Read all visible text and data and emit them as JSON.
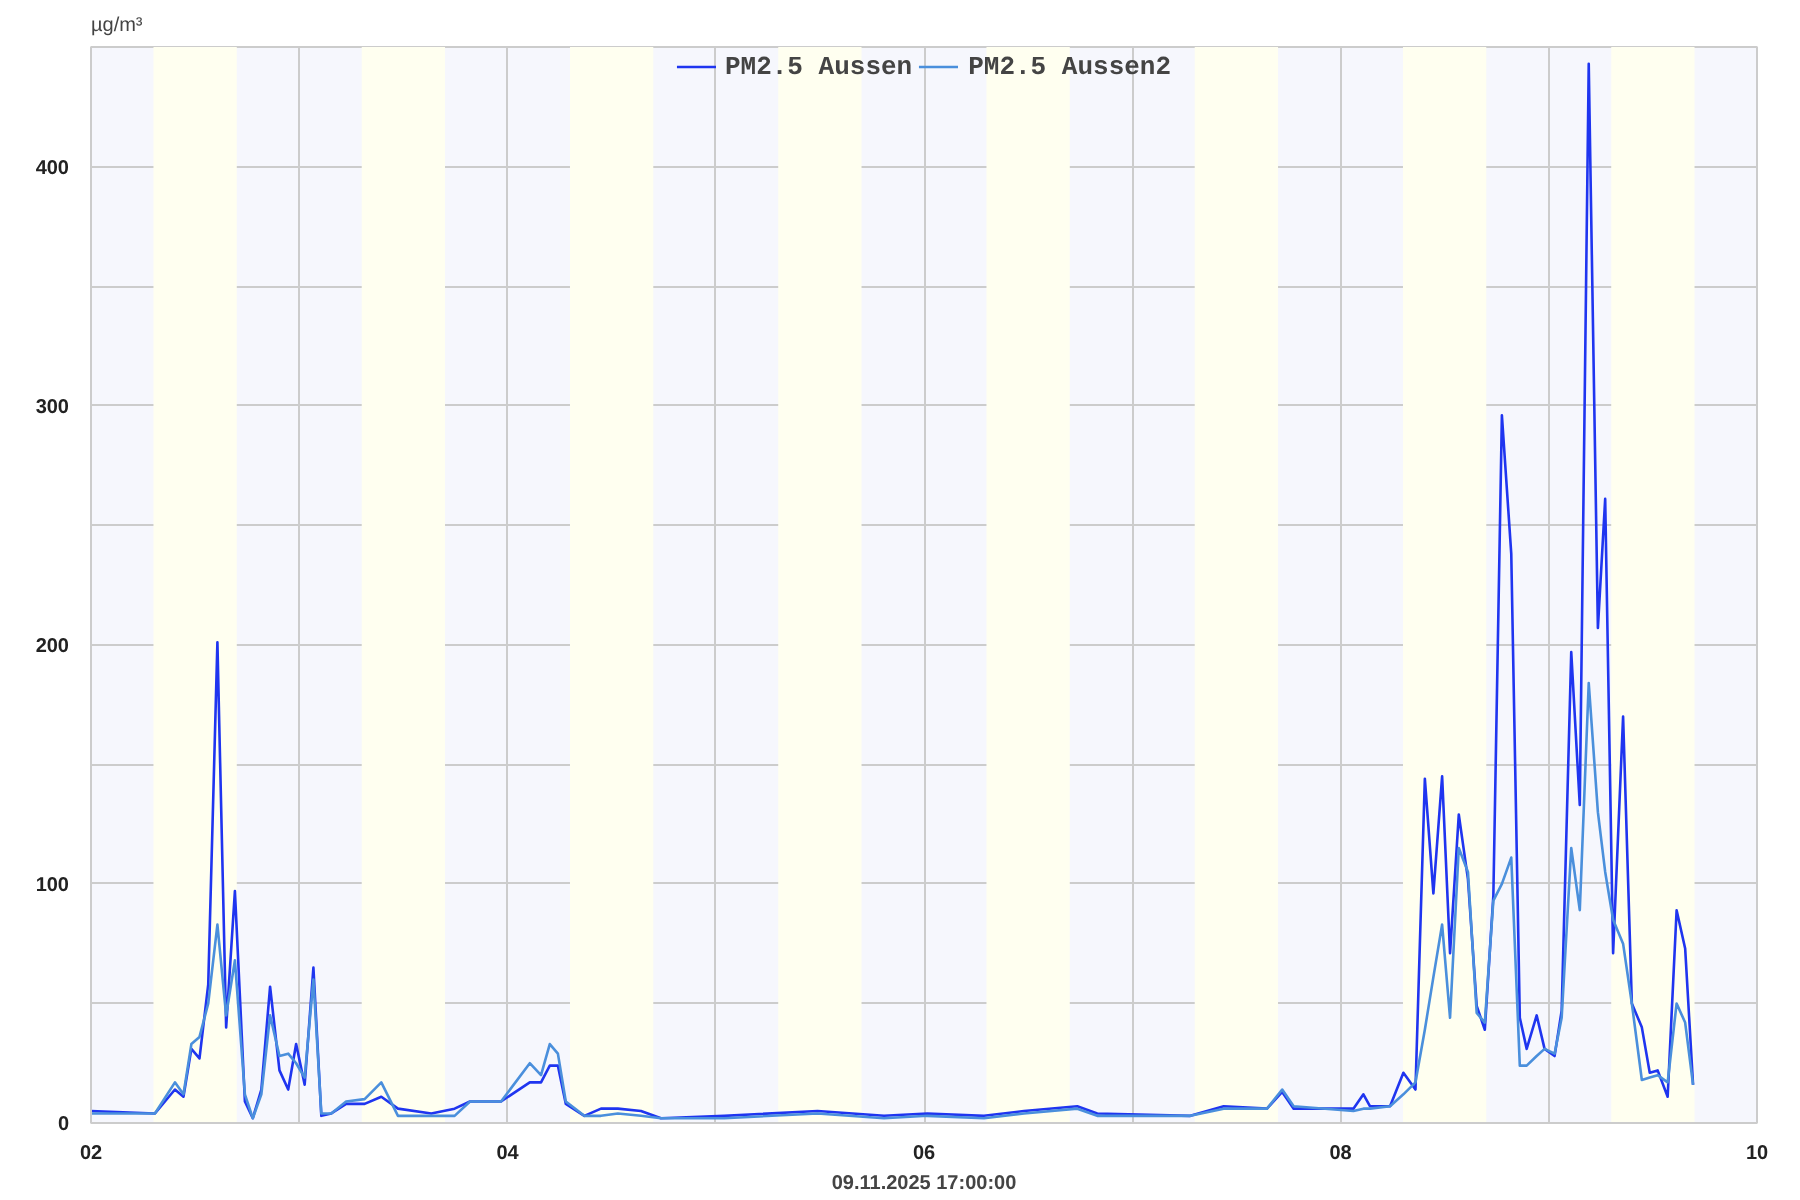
{
  "chart_data": {
    "type": "line",
    "ylabel": "µg/m³",
    "xlabel": "09.11.2025 17:00:00",
    "x": [
      2.0,
      2.307,
      2.403,
      2.444,
      2.482,
      2.521,
      2.563,
      2.607,
      2.649,
      2.691,
      2.739,
      2.777,
      2.818,
      2.86,
      2.905,
      2.947,
      2.985,
      3.026,
      3.068,
      3.106,
      3.154,
      3.225,
      3.314,
      3.394,
      3.474,
      3.634,
      3.746,
      3.82,
      3.969,
      4.107,
      4.161,
      4.203,
      4.242,
      4.28,
      4.369,
      4.449,
      4.53,
      4.641,
      4.737,
      5.041,
      5.489,
      5.808,
      6.016,
      6.288,
      6.48,
      6.736,
      6.832,
      7.279,
      7.439,
      7.647,
      7.72,
      7.775,
      8.062,
      8.11,
      8.142,
      8.238,
      8.302,
      8.36,
      8.405,
      8.446,
      8.488,
      8.526,
      8.568,
      8.612,
      8.654,
      8.693,
      8.734,
      8.775,
      8.82,
      8.861,
      8.894,
      8.942,
      8.98,
      9.028,
      9.062,
      9.108,
      9.149,
      9.192,
      9.236,
      9.271,
      9.309,
      9.357,
      9.399,
      9.447,
      9.485,
      9.523,
      9.571,
      9.614,
      9.655,
      9.693
    ],
    "series": [
      {
        "name": "PM2.5 Aussen",
        "color": "#1f35f0",
        "values": [
          5,
          4,
          14,
          11,
          31,
          27,
          58,
          201,
          40,
          97,
          9,
          2,
          14,
          57,
          22,
          14,
          33,
          16,
          65,
          3,
          4,
          8,
          8,
          11,
          6,
          4,
          6,
          9,
          9,
          17,
          17,
          24,
          24,
          8,
          3,
          6,
          6,
          5,
          2,
          3,
          5,
          3,
          4,
          3,
          5,
          7,
          4,
          3,
          7,
          6,
          13,
          6,
          6,
          12,
          7,
          7,
          21,
          14,
          144,
          96,
          145,
          71,
          129,
          102,
          49,
          39,
          95,
          296,
          238,
          44,
          31,
          45,
          31,
          28,
          47,
          197,
          133,
          443,
          207,
          261,
          71,
          170,
          50,
          40,
          21,
          22,
          11,
          89,
          73,
          16
        ]
      },
      {
        "name": "PM2.5 Aussen2",
        "color": "#4a8fdc",
        "values": [
          4,
          4,
          17,
          12,
          33,
          36,
          50,
          83,
          45,
          68,
          12,
          2,
          12,
          45,
          28,
          29,
          25,
          19,
          60,
          4,
          4,
          9,
          10,
          17,
          3,
          3,
          3,
          9,
          9,
          25,
          20,
          33,
          29,
          9,
          3,
          3,
          4,
          3,
          2,
          2,
          4,
          2,
          3,
          2,
          4,
          6,
          3,
          3,
          6,
          6,
          14,
          7,
          5,
          6,
          6,
          7,
          12,
          17,
          39,
          61,
          83,
          44,
          115,
          105,
          46,
          42,
          93,
          100,
          111,
          24,
          24,
          28,
          31,
          29,
          44,
          115,
          89,
          184,
          130,
          105,
          85,
          75,
          50,
          18,
          19,
          20,
          17,
          50,
          42,
          16
        ]
      }
    ],
    "xlim": [
      2,
      10
    ],
    "xticks": [
      {
        "value": 2,
        "label": "02"
      },
      {
        "value": 3,
        "label": null
      },
      {
        "value": 4,
        "label": "04"
      },
      {
        "value": 5,
        "label": null
      },
      {
        "value": 6,
        "label": "06"
      },
      {
        "value": 7,
        "label": null
      },
      {
        "value": 8,
        "label": "08"
      },
      {
        "value": 9,
        "label": null
      },
      {
        "value": 10,
        "label": "10"
      }
    ],
    "ylim": [
      0,
      450
    ],
    "yticks": [
      0,
      {
        "value": 50,
        "label": null
      },
      100,
      {
        "value": 150,
        "label": null
      },
      200,
      {
        "value": 250,
        "label": null
      },
      300,
      {
        "value": 350,
        "label": null
      },
      400
    ],
    "grid": true,
    "legend": "top",
    "marker": "none",
    "line_style": "solid",
    "bands": [
      {
        "axis": "x",
        "from": 2.3,
        "to": 2.7,
        "color": "#fffff0"
      },
      {
        "axis": "x",
        "from": 3.3,
        "to": 3.7,
        "color": "#fffff0"
      },
      {
        "axis": "x",
        "from": 4.3,
        "to": 4.7,
        "color": "#fffff0"
      },
      {
        "axis": "x",
        "from": 5.3,
        "to": 5.7,
        "color": "#fffff0"
      },
      {
        "axis": "x",
        "from": 6.3,
        "to": 6.7,
        "color": "#fffff0"
      },
      {
        "axis": "x",
        "from": 7.3,
        "to": 7.7,
        "color": "#fffff0"
      },
      {
        "axis": "x",
        "from": 8.3,
        "to": 8.7,
        "color": "#fffff0"
      },
      {
        "axis": "x",
        "from": 9.3,
        "to": 9.7,
        "color": "#fffff0"
      }
    ]
  }
}
